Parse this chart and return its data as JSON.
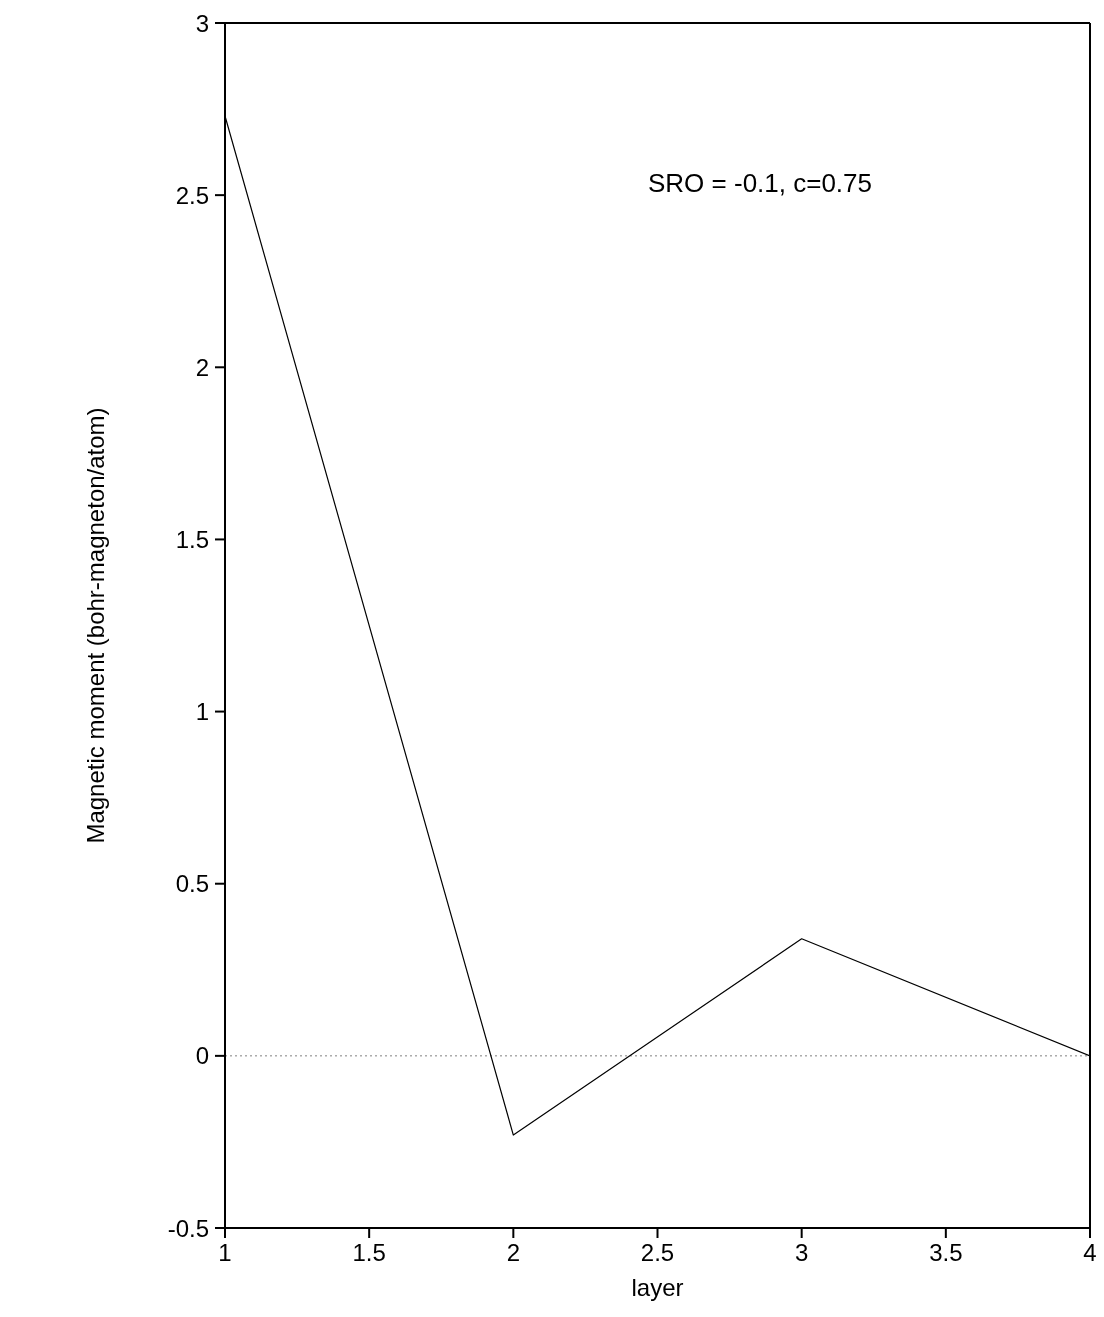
{
  "chart_data": {
    "type": "line",
    "xlabel": "layer",
    "ylabel": "Magnetic moment (bohr-magneton/atom)",
    "x": [
      1,
      2,
      3,
      4
    ],
    "series": [
      {
        "color": "#000000",
        "values": [
          2.73,
          -0.23,
          0.34,
          0
        ]
      }
    ],
    "xlim": [
      1,
      4
    ],
    "xticks": [
      1,
      1.5,
      2,
      2.5,
      3,
      3.5,
      4
    ],
    "ylim": [
      -0.5,
      3
    ],
    "yticks": [
      -0.5,
      0,
      0.5,
      1,
      1.5,
      2,
      2.5,
      3
    ],
    "ref_lines": [
      {
        "axis": "y",
        "value": 0,
        "color": "#808080",
        "line_style": "dotted"
      }
    ],
    "annotations": [
      "SRO = -0.1, c=0.75"
    ],
    "grid": false,
    "legend": false,
    "marker": "none",
    "line_style": "solid"
  }
}
